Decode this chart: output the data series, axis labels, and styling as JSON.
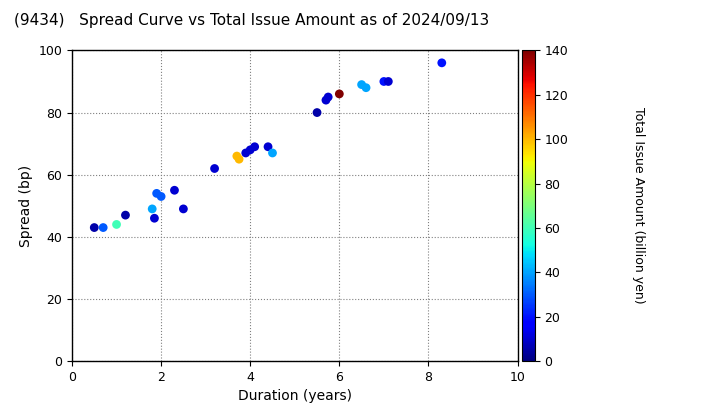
{
  "title": "(9434)   Spread Curve vs Total Issue Amount as of 2024/09/13",
  "xlabel": "Duration (years)",
  "ylabel": "Spread (bp)",
  "colorbar_label": "Total Issue Amount (billion yen)",
  "xlim": [
    0,
    10
  ],
  "ylim": [
    0,
    100
  ],
  "xticks": [
    0,
    2,
    4,
    6,
    8,
    10
  ],
  "yticks": [
    0,
    20,
    40,
    60,
    80,
    100
  ],
  "colorbar_ticks": [
    0,
    20,
    40,
    60,
    80,
    100,
    120,
    140
  ],
  "colorbar_vmin": 0,
  "colorbar_vmax": 140,
  "points": [
    {
      "duration": 0.5,
      "spread": 43,
      "amount": 5
    },
    {
      "duration": 0.7,
      "spread": 43,
      "amount": 30
    },
    {
      "duration": 1.0,
      "spread": 44,
      "amount": 60
    },
    {
      "duration": 1.2,
      "spread": 47,
      "amount": 5
    },
    {
      "duration": 1.8,
      "spread": 49,
      "amount": 40
    },
    {
      "duration": 1.85,
      "spread": 46,
      "amount": 10
    },
    {
      "duration": 1.9,
      "spread": 54,
      "amount": 30
    },
    {
      "duration": 2.0,
      "spread": 53,
      "amount": 30
    },
    {
      "duration": 2.3,
      "spread": 55,
      "amount": 10
    },
    {
      "duration": 2.5,
      "spread": 49,
      "amount": 10
    },
    {
      "duration": 3.2,
      "spread": 62,
      "amount": 10
    },
    {
      "duration": 3.7,
      "spread": 66,
      "amount": 100
    },
    {
      "duration": 3.75,
      "spread": 65,
      "amount": 100
    },
    {
      "duration": 3.9,
      "spread": 67,
      "amount": 10
    },
    {
      "duration": 4.0,
      "spread": 68,
      "amount": 10
    },
    {
      "duration": 4.1,
      "spread": 69,
      "amount": 10
    },
    {
      "duration": 4.4,
      "spread": 69,
      "amount": 10
    },
    {
      "duration": 4.5,
      "spread": 67,
      "amount": 40
    },
    {
      "duration": 5.5,
      "spread": 80,
      "amount": 5
    },
    {
      "duration": 5.7,
      "spread": 84,
      "amount": 10
    },
    {
      "duration": 5.75,
      "spread": 85,
      "amount": 10
    },
    {
      "duration": 6.0,
      "spread": 86,
      "amount": 140
    },
    {
      "duration": 6.5,
      "spread": 89,
      "amount": 40
    },
    {
      "duration": 6.6,
      "spread": 88,
      "amount": 40
    },
    {
      "duration": 7.0,
      "spread": 90,
      "amount": 20
    },
    {
      "duration": 7.1,
      "spread": 90,
      "amount": 10
    },
    {
      "duration": 8.3,
      "spread": 96,
      "amount": 20
    }
  ],
  "marker_size": 40,
  "background_color": "#ffffff",
  "title_fontsize": 11,
  "axis_fontsize": 10,
  "tick_fontsize": 9,
  "colorbar_fontsize": 9
}
